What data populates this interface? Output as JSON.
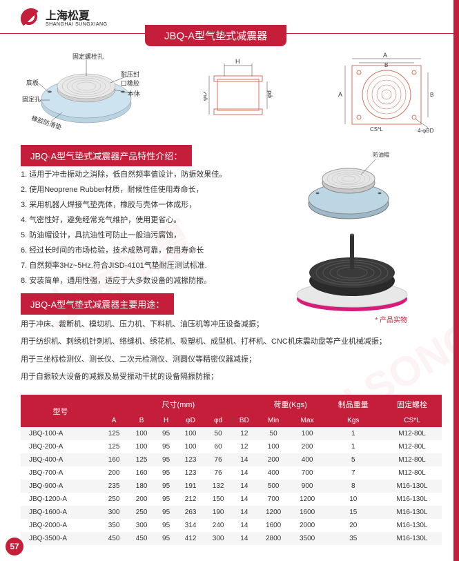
{
  "logo": {
    "cn": "上海松夏",
    "en": "SHANGHAI SUNGXIANG"
  },
  "title": "JBQ-A型气垫式减震器",
  "diag_labels": {
    "l1": "固定螺栓孔",
    "l2": "底板",
    "l3": "固定孔",
    "l4": "耐压封口橡胶",
    "l5": "本体",
    "l6": "橡胶防滑垫",
    "h": "H",
    "a": "A",
    "b": "B",
    "d1": "φD",
    "d2": "φd",
    "bd": "4-φBD",
    "cs": "CS*L",
    "cap": "防油帽"
  },
  "section1_title": "JBQ-A型气垫式减震器产品特性介绍：",
  "features": [
    "1. 适用于冲击振动之消除，低自然频率值设计，防振效果佳。",
    "2. 使用Neoprene Rubber材质，耐候性佳使用寿命长，",
    "3. 采用机器人焊接气垫壳体，橡胶与壳体一体成形，",
    "4. 气密性好，避免经常充气维护，使用更省心。",
    "5. 防油帽设计，具抗油性可防止一般油污腐蚀，",
    "6. 经过长时间的市场检验，技术成熟可靠，使用寿命长",
    "7. 自然频率3Hz~5Hz.符合JISD-4101气垫耐压测试标准.",
    "8. 安装简单，通用性强，适应于大多数设备的减振防振。"
  ],
  "section2_title": "JBQ-A型气垫式减震器主要用途：",
  "uses": [
    "用于冲床、裁断机、模切机、压力机、下料机、油压机等冲压设备减振；",
    "用于纺织机、刺绣机针刺机、络缝机、绣花机、吸塑机、成型机、打杯机、CNC机床震动盘等产业机械减振；",
    "用于三坐标检测仪、测长仪、二次元检测仪、测圆仪等精密仪器减振；",
    "用于自振较大设备的减振及易受振动干扰的设备隔振防振；"
  ],
  "prod_caption": "* 产品实物",
  "table": {
    "h1": [
      "型号",
      "尺寸(mm)",
      "荷重(Kgs)",
      "制品重量",
      "固定螺栓"
    ],
    "h1_span": [
      1,
      6,
      2,
      1,
      1
    ],
    "h2": [
      "",
      "A",
      "B",
      "H",
      "φD",
      "φd",
      "BD",
      "Min",
      "Max",
      "Kgs",
      "CS*L"
    ],
    "rows": [
      [
        "JBQ-100-A",
        "125",
        "100",
        "95",
        "100",
        "50",
        "12",
        "50",
        "100",
        "1",
        "M12-80L"
      ],
      [
        "JBQ-200-A",
        "125",
        "100",
        "95",
        "100",
        "60",
        "12",
        "100",
        "200",
        "1",
        "M12-80L"
      ],
      [
        "JBQ-400-A",
        "160",
        "125",
        "95",
        "123",
        "76",
        "14",
        "200",
        "400",
        "5",
        "M12-80L"
      ],
      [
        "JBQ-700-A",
        "200",
        "160",
        "95",
        "123",
        "76",
        "14",
        "400",
        "700",
        "7",
        "M12-80L"
      ],
      [
        "JBQ-900-A",
        "235",
        "180",
        "95",
        "191",
        "132",
        "14",
        "500",
        "900",
        "8",
        "M16-130L"
      ],
      [
        "JBQ-1200-A",
        "250",
        "200",
        "95",
        "212",
        "150",
        "14",
        "700",
        "1200",
        "10",
        "M16-130L"
      ],
      [
        "JBQ-1600-A",
        "300",
        "250",
        "95",
        "263",
        "190",
        "14",
        "1200",
        "1600",
        "15",
        "M16-130L"
      ],
      [
        "JBQ-2000-A",
        "350",
        "300",
        "95",
        "314",
        "240",
        "14",
        "1600",
        "2000",
        "20",
        "M16-130L"
      ],
      [
        "JBQ-3500-A",
        "450",
        "450",
        "95",
        "412",
        "300",
        "14",
        "2800",
        "3500",
        "35",
        "M16-130L"
      ]
    ]
  },
  "page_num": "57",
  "colors": {
    "brand": "#c41e3a",
    "text": "#333",
    "bg_odd": "#f5f5f5"
  }
}
